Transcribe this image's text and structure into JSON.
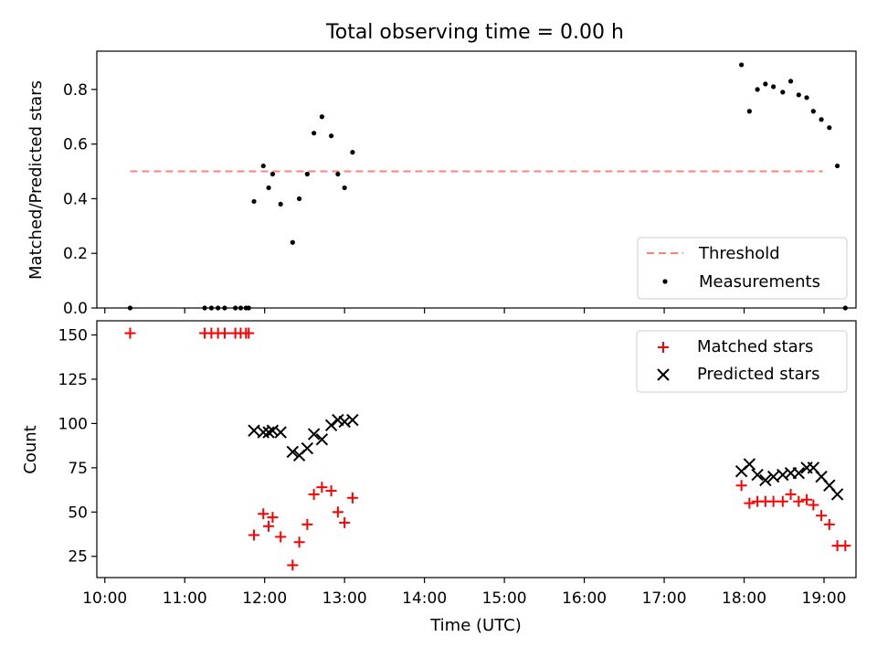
{
  "title": "Total observing time = 0.00 h",
  "chart_data": [
    {
      "type": "scatter",
      "ylabel": "Matched/Predicted stars",
      "ylim": [
        0,
        0.94
      ],
      "yticks": [
        0.0,
        0.2,
        0.4,
        0.6,
        0.8
      ],
      "ytick_labels": [
        "0.0",
        "0.2",
        "0.4",
        "0.6",
        "0.8"
      ],
      "legend_position": "lower-right",
      "threshold": {
        "name": "Threshold",
        "value": 0.5,
        "x_start": "10:19",
        "x_end": "18:59",
        "color": "#ff8080"
      },
      "series": [
        {
          "name": "Measurements",
          "marker": "dot",
          "color": "#000000",
          "x": [
            "10:19",
            "11:15",
            "11:20",
            "11:25",
            "11:30",
            "11:38",
            "11:42",
            "11:46",
            "11:48",
            "11:52",
            "11:59",
            "12:03",
            "12:06",
            "12:12",
            "12:21",
            "12:26",
            "12:32",
            "12:37",
            "12:43",
            "12:50",
            "12:55",
            "13:00",
            "13:06",
            "17:58",
            "18:04",
            "18:10",
            "18:16",
            "18:22",
            "18:29",
            "18:35",
            "18:41",
            "18:47",
            "18:52",
            "18:58",
            "19:04",
            "19:10",
            "19:16"
          ],
          "y": [
            0.0,
            0.0,
            0.0,
            0.0,
            0.0,
            0.0,
            0.0,
            0.0,
            0.0,
            0.39,
            0.52,
            0.44,
            0.49,
            0.38,
            0.24,
            0.4,
            0.49,
            0.64,
            0.7,
            0.63,
            0.49,
            0.44,
            0.57,
            0.89,
            0.72,
            0.8,
            0.82,
            0.81,
            0.79,
            0.83,
            0.78,
            0.77,
            0.72,
            0.69,
            0.66,
            0.52,
            0.0
          ]
        }
      ]
    },
    {
      "type": "scatter",
      "xlabel": "Time (UTC)",
      "ylabel": "Count",
      "xlim": [
        "09:54",
        "19:24"
      ],
      "xticks": [
        "10:00",
        "11:00",
        "12:00",
        "13:00",
        "14:00",
        "15:00",
        "16:00",
        "17:00",
        "18:00",
        "19:00"
      ],
      "ylim": [
        13,
        158
      ],
      "yticks": [
        25,
        50,
        75,
        100,
        125,
        150
      ],
      "legend_position": "upper-right",
      "series": [
        {
          "name": "Matched stars",
          "marker": "plus",
          "color": "#ff0000",
          "x": [
            "10:19",
            "11:15",
            "11:20",
            "11:25",
            "11:30",
            "11:38",
            "11:42",
            "11:46",
            "11:48",
            "11:52",
            "11:59",
            "12:03",
            "12:06",
            "12:12",
            "12:21",
            "12:26",
            "12:32",
            "12:37",
            "12:43",
            "12:50",
            "12:55",
            "13:00",
            "13:06",
            "17:58",
            "18:04",
            "18:10",
            "18:16",
            "18:22",
            "18:29",
            "18:35",
            "18:41",
            "18:47",
            "18:52",
            "18:58",
            "19:04",
            "19:10",
            "19:16"
          ],
          "y": [
            151,
            151,
            151,
            151,
            151,
            151,
            151,
            151,
            151,
            37,
            49,
            42,
            47,
            36,
            20,
            33,
            43,
            60,
            64,
            62,
            50,
            44,
            58,
            65,
            55,
            56,
            56,
            56,
            56,
            60,
            56,
            57,
            54,
            48,
            43,
            31,
            31
          ]
        },
        {
          "name": "Predicted stars",
          "marker": "x",
          "color": "#000000",
          "x": [
            "11:52",
            "11:59",
            "12:03",
            "12:06",
            "12:12",
            "12:21",
            "12:26",
            "12:32",
            "12:37",
            "12:43",
            "12:50",
            "12:55",
            "13:00",
            "13:06",
            "17:58",
            "18:04",
            "18:10",
            "18:16",
            "18:22",
            "18:29",
            "18:35",
            "18:41",
            "18:47",
            "18:52",
            "18:58",
            "19:04",
            "19:10"
          ],
          "y": [
            96,
            95,
            95,
            96,
            95,
            84,
            82,
            86,
            94,
            91,
            99,
            102,
            101,
            102,
            73,
            77,
            71,
            68,
            70,
            71,
            72,
            72,
            75,
            75,
            70,
            65,
            60
          ]
        }
      ]
    }
  ]
}
